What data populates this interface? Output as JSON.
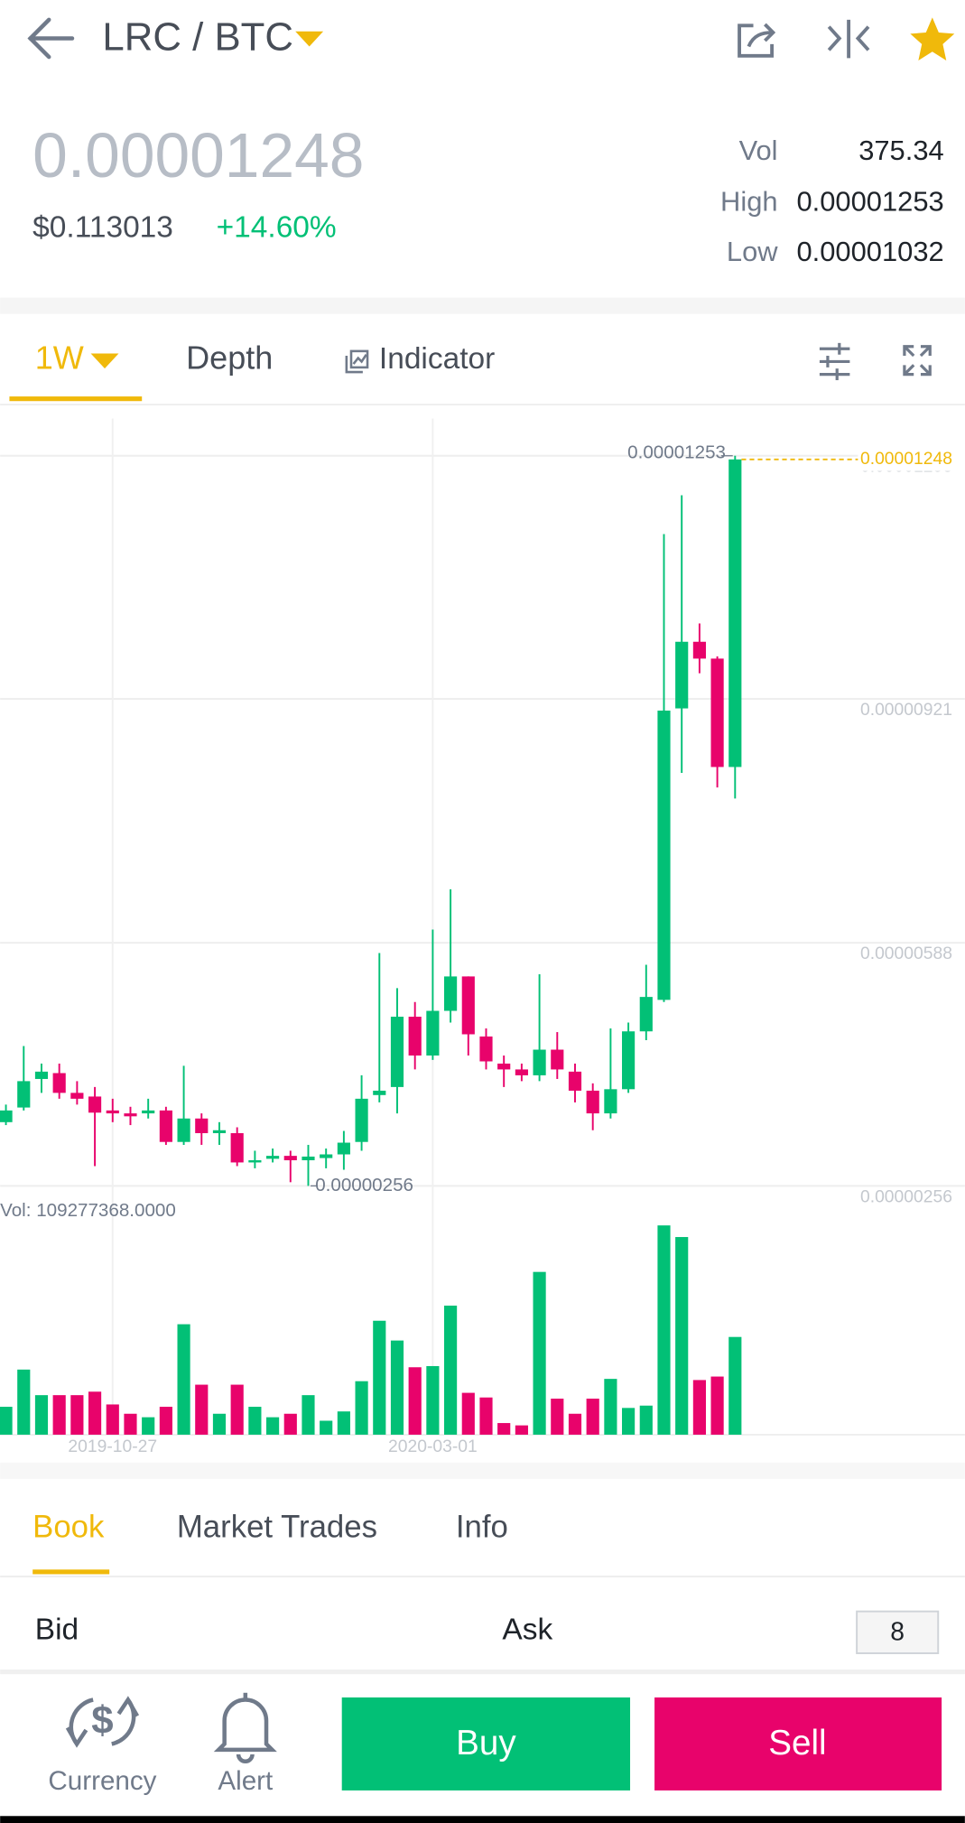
{
  "header": {
    "pair": "LRC / BTC"
  },
  "ticker": {
    "price": "0.00001248",
    "fiat": "$0.113013",
    "change": "+14.60%",
    "vol_label": "Vol",
    "vol": "375.34",
    "high_label": "High",
    "high": "0.00001253",
    "low_label": "Low",
    "low": "0.00001032"
  },
  "chart_tabs": {
    "interval": "1W",
    "depth": "Depth",
    "indicator": "Indicator"
  },
  "chart_data": {
    "type": "candlestick",
    "categories": [
      null,
      null,
      null,
      null,
      null,
      null,
      "2019-10-27",
      null,
      null,
      null,
      null,
      null,
      null,
      null,
      null,
      null,
      null,
      null,
      null,
      null,
      null,
      null,
      null,
      null,
      "2020-03-01",
      null,
      null,
      null,
      null,
      null,
      null,
      null,
      null,
      null,
      null,
      null,
      null,
      null,
      null,
      null,
      null,
      null
    ],
    "open": [
      3.43e-06,
      3.63e-06,
      4.02e-06,
      4.1e-06,
      3.83e-06,
      3.78e-06,
      3.59e-06,
      3.55e-06,
      3.55e-06,
      3.59e-06,
      3.16e-06,
      3.48e-06,
      3.28e-06,
      3.28e-06,
      2.88e-06,
      2.93e-06,
      2.97e-06,
      2.91e-06,
      2.94e-06,
      2.99e-06,
      3.16e-06,
      3.8e-06,
      3.91e-06,
      4.87e-06,
      4.34e-06,
      4.95e-06,
      5.42e-06,
      4.6e-06,
      4.23e-06,
      4.15e-06,
      4.07e-06,
      4.42e-06,
      4.12e-06,
      3.86e-06,
      3.55e-06,
      3.88e-06,
      4.67e-06,
      5.1e-06,
      9.08e-06,
      9.99e-06,
      9.76e-06,
      8.28e-06
    ],
    "high": [
      3.67e-06,
      4.47e-06,
      4.23e-06,
      4.23e-06,
      3.99e-06,
      3.91e-06,
      3.75e-06,
      3.64e-06,
      3.75e-06,
      3.64e-06,
      4.2e-06,
      3.55e-06,
      3.43e-06,
      3.36e-06,
      3.04e-06,
      3.07e-06,
      3.04e-06,
      3.12e-06,
      3.07e-06,
      3.31e-06,
      4.07e-06,
      5.74e-06,
      5.26e-06,
      5.07e-06,
      6.06e-06,
      6.61e-06,
      5.42e-06,
      4.71e-06,
      4.34e-06,
      4.23e-06,
      5.45e-06,
      4.66e-06,
      4.23e-06,
      3.96e-06,
      4.71e-06,
      4.79e-06,
      5.58e-06,
      1.146e-05,
      1.199e-05,
      1.024e-05,
      9.79e-06,
      1.253e-05
    ],
    "low": [
      3.39e-06,
      3.59e-06,
      3.83e-06,
      3.75e-06,
      3.67e-06,
      2.83e-06,
      3.43e-06,
      3.39e-06,
      3.48e-06,
      3.12e-06,
      3.12e-06,
      3.12e-06,
      3.12e-06,
      2.83e-06,
      2.8e-06,
      2.88e-06,
      2.61e-06,
      2.56e-06,
      2.8e-06,
      2.78e-06,
      3.04e-06,
      3.7e-06,
      3.55e-06,
      4.15e-06,
      4.28e-06,
      4.79e-06,
      4.34e-06,
      4.15e-06,
      3.91e-06,
      3.99e-06,
      3.99e-06,
      4.02e-06,
      3.7e-06,
      3.32e-06,
      3.48e-06,
      3.83e-06,
      4.55e-06,
      5.07e-06,
      8.2e-06,
      9.56e-06,
      8e-06,
      7.85e-06
    ],
    "close": [
      3.59e-06,
      3.99e-06,
      4.12e-06,
      3.83e-06,
      3.75e-06,
      3.56e-06,
      3.55e-06,
      3.51e-06,
      3.59e-06,
      3.16e-06,
      3.48e-06,
      3.28e-06,
      3.32e-06,
      2.88e-06,
      2.91e-06,
      2.97e-06,
      2.91e-06,
      2.96e-06,
      2.99e-06,
      3.15e-06,
      3.75e-06,
      3.86e-06,
      4.87e-06,
      4.34e-06,
      4.95e-06,
      5.42e-06,
      4.63e-06,
      4.26e-06,
      4.15e-06,
      4.07e-06,
      4.42e-06,
      4.15e-06,
      3.86e-06,
      3.55e-06,
      3.88e-06,
      4.67e-06,
      5.14e-06,
      9.05e-06,
      9.99e-06,
      9.76e-06,
      8.28e-06,
      1.248e-05
    ],
    "volume": [
      31200000,
      72800000,
      44200000,
      44200000,
      44200000,
      48100000,
      33800000,
      23400000,
      19500000,
      31200000,
      123500000,
      55900000,
      23400000,
      55900000,
      31200000,
      19500000,
      23400000,
      44200000,
      15600000,
      26000000,
      59800000,
      127400000,
      105300000,
      75400000,
      76700000,
      144300000,
      46800000,
      41600000,
      13000000,
      10400000,
      182000000,
      40300000,
      23400000,
      40300000,
      62400000,
      29900000,
      32500000,
      234000000,
      221000000,
      61100000,
      65000000,
      109277368
    ],
    "volume_label": "Vol: 109277368.0000",
    "ylim": [
      2.56e-06,
      1.253e-05
    ],
    "yticks": [
      1.253e-05,
      9.21e-06,
      5.88e-06,
      2.56e-06
    ],
    "volume_ylim": [
      0,
      234000000
    ],
    "up_color": "#02c076",
    "down_color": "#e8036b",
    "last_price_color": "#f0b90b",
    "grid": true
  },
  "book_tabs": {
    "book": "Book",
    "trades": "Market Trades",
    "info": "Info"
  },
  "book": {
    "bid": "Bid",
    "ask": "Ask",
    "depth": "8"
  },
  "bottom_bar": {
    "currency": "Currency",
    "alert": "Alert",
    "buy": "Buy",
    "sell": "Sell"
  }
}
